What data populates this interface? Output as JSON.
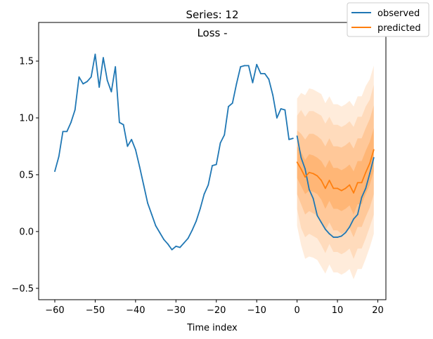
{
  "chart_data": {
    "type": "line",
    "title": "Series: 12",
    "subtitle": "Loss -",
    "xlabel": "Time index",
    "ylabel": "",
    "xlim": [
      -64,
      22
    ],
    "ylim": [
      -0.6,
      1.84
    ],
    "xticks": [
      -60,
      -50,
      -40,
      -30,
      -20,
      -10,
      0,
      10,
      20
    ],
    "yticks": [
      -0.5,
      0.0,
      0.5,
      1.0,
      1.5
    ],
    "xtick_labels": [
      "−60",
      "−50",
      "−40",
      "−30",
      "−20",
      "−10",
      "0",
      "10",
      "20"
    ],
    "ytick_labels": [
      "−0.5",
      "0.0",
      "0.5",
      "1.0",
      "1.5"
    ],
    "grid": false,
    "legend_position": "top-right",
    "colors": {
      "observed": "#1f77b4",
      "predicted": "#ff7f0e",
      "band": "#ff7f0e"
    },
    "series": [
      {
        "name": "observed",
        "x": [
          -60,
          -59,
          -58,
          -57,
          -56,
          -55,
          -54,
          -53,
          -52,
          -51,
          -50,
          -49,
          -48,
          -47,
          -46,
          -45,
          -44,
          -43,
          -42,
          -41,
          -40,
          -39,
          -38,
          -37,
          -36,
          -35,
          -34,
          -33,
          -32,
          -31,
          -30,
          -29,
          -28,
          -27,
          -26,
          -25,
          -24,
          -23,
          -22,
          -21,
          -20,
          -19,
          -18,
          -17,
          -16,
          -15,
          -14,
          -13,
          -12,
          -11,
          -10,
          -9,
          -8,
          -7,
          -6,
          -5,
          -4,
          -3,
          -2,
          -1
        ],
        "values": [
          0.53,
          0.66,
          0.88,
          0.88,
          0.96,
          1.07,
          1.36,
          1.3,
          1.32,
          1.36,
          1.56,
          1.27,
          1.53,
          1.33,
          1.23,
          1.45,
          0.96,
          0.94,
          0.75,
          0.81,
          0.72,
          0.57,
          0.41,
          0.25,
          0.15,
          0.05,
          -0.01,
          -0.07,
          -0.11,
          -0.16,
          -0.13,
          -0.14,
          -0.1,
          -0.06,
          0.01,
          0.09,
          0.2,
          0.33,
          0.41,
          0.58,
          0.59,
          0.78,
          0.85,
          1.1,
          1.13,
          1.3,
          1.45,
          1.46,
          1.46,
          1.31,
          1.47,
          1.39,
          1.39,
          1.34,
          1.2,
          1.0,
          1.08,
          1.07,
          0.81,
          0.82
        ]
      },
      {
        "name": "observed",
        "x": [
          0,
          1,
          2,
          3,
          4,
          5,
          6,
          7,
          8,
          9,
          10,
          11,
          12,
          13,
          14,
          15,
          16,
          17,
          18,
          19
        ],
        "values": [
          0.84,
          0.65,
          0.55,
          0.37,
          0.29,
          0.14,
          0.08,
          0.02,
          -0.02,
          -0.05,
          -0.05,
          -0.04,
          -0.01,
          0.04,
          0.11,
          0.15,
          0.3,
          0.38,
          0.51,
          0.65
        ]
      },
      {
        "name": "predicted",
        "x": [
          0,
          1,
          2,
          3,
          4,
          5,
          6,
          7,
          8,
          9,
          10,
          11,
          12,
          13,
          14,
          15,
          16,
          17,
          18,
          19
        ],
        "values": [
          0.61,
          0.55,
          0.48,
          0.52,
          0.51,
          0.49,
          0.45,
          0.38,
          0.45,
          0.38,
          0.38,
          0.36,
          0.38,
          0.41,
          0.34,
          0.43,
          0.43,
          0.52,
          0.6,
          0.72
        ]
      }
    ],
    "bands": [
      {
        "x": [
          0,
          1,
          2,
          3,
          4,
          5,
          6,
          7,
          8,
          9,
          10,
          11,
          12,
          13,
          14,
          15,
          16,
          17,
          18,
          19
        ],
        "lower": [
          0.05,
          -0.12,
          -0.24,
          -0.22,
          -0.23,
          -0.25,
          -0.31,
          -0.37,
          -0.29,
          -0.36,
          -0.36,
          -0.38,
          -0.36,
          -0.33,
          -0.42,
          -0.33,
          -0.33,
          -0.24,
          -0.14,
          -0.02
        ],
        "upper": [
          1.17,
          1.22,
          1.2,
          1.26,
          1.25,
          1.23,
          1.21,
          1.13,
          1.19,
          1.12,
          1.12,
          1.1,
          1.12,
          1.15,
          1.1,
          1.19,
          1.19,
          1.28,
          1.34,
          1.46
        ]
      },
      {
        "x": [
          0,
          1,
          2,
          3,
          4,
          5,
          6,
          7,
          8,
          9,
          10,
          11,
          12,
          13,
          14,
          15,
          16,
          17,
          18,
          19
        ],
        "lower": [
          0.2,
          0.03,
          -0.05,
          -0.02,
          -0.04,
          -0.06,
          -0.12,
          -0.19,
          -0.11,
          -0.18,
          -0.18,
          -0.2,
          -0.18,
          -0.15,
          -0.24,
          -0.15,
          -0.15,
          -0.06,
          0.04,
          0.15
        ],
        "upper": [
          1.02,
          1.07,
          1.01,
          1.06,
          1.06,
          1.04,
          1.02,
          0.95,
          1.01,
          0.94,
          0.94,
          0.92,
          0.94,
          0.97,
          0.92,
          1.01,
          1.01,
          1.1,
          1.16,
          1.29
        ]
      },
      {
        "x": [
          0,
          1,
          2,
          3,
          4,
          5,
          6,
          7,
          8,
          9,
          10,
          11,
          12,
          13,
          14,
          15,
          16,
          17,
          18,
          19
        ],
        "lower": [
          0.33,
          0.24,
          0.15,
          0.18,
          0.16,
          0.14,
          0.09,
          0.01,
          0.08,
          0.01,
          0.01,
          -0.02,
          0.0,
          0.03,
          -0.05,
          0.04,
          0.04,
          0.13,
          0.21,
          0.33
        ],
        "upper": [
          0.89,
          0.86,
          0.81,
          0.86,
          0.86,
          0.84,
          0.81,
          0.75,
          0.82,
          0.75,
          0.75,
          0.74,
          0.76,
          0.79,
          0.73,
          0.82,
          0.82,
          0.91,
          0.99,
          1.11
        ]
      },
      {
        "x": [
          0,
          1,
          2,
          3,
          4,
          5,
          6,
          7,
          8,
          9,
          10,
          11,
          12,
          13,
          14,
          15,
          16,
          17,
          18,
          19
        ],
        "lower": [
          0.47,
          0.4,
          0.33,
          0.36,
          0.35,
          0.33,
          0.28,
          0.2,
          0.27,
          0.2,
          0.2,
          0.18,
          0.2,
          0.23,
          0.15,
          0.24,
          0.24,
          0.33,
          0.41,
          0.53
        ],
        "upper": [
          0.75,
          0.7,
          0.63,
          0.68,
          0.67,
          0.65,
          0.62,
          0.56,
          0.63,
          0.56,
          0.56,
          0.54,
          0.56,
          0.59,
          0.53,
          0.62,
          0.62,
          0.71,
          0.79,
          0.91
        ]
      }
    ]
  }
}
